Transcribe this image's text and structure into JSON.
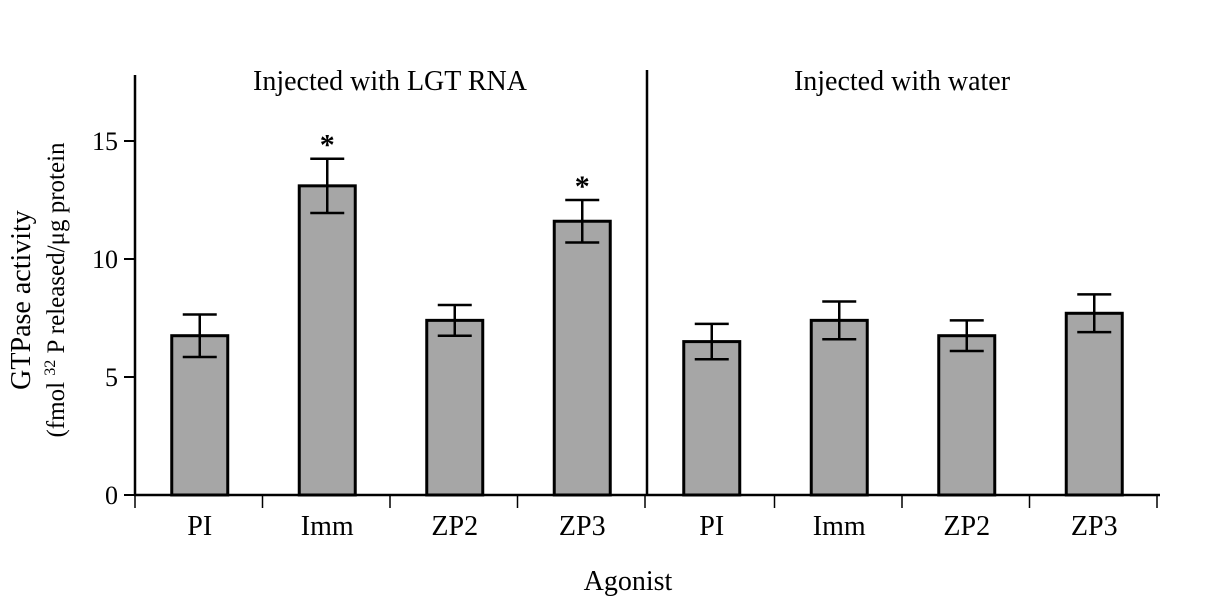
{
  "chart_data": {
    "type": "bar",
    "ylabel": "GTPase activity",
    "ylabel2_pre": "(fmol ",
    "ylabel2_sup": "32",
    "ylabel2_post": " P released/μg protein",
    "xlabel": "Agonist",
    "ylim": [
      0,
      17.5
    ],
    "yticks": [
      0,
      5,
      10,
      15
    ],
    "bar_color": "#a6a6a6",
    "groups": [
      {
        "label": "Injected with LGT RNA",
        "categories": [
          "PI",
          "Imm",
          "ZP2",
          "ZP3"
        ],
        "values": [
          6.75,
          13.1,
          7.4,
          11.6
        ],
        "errors": [
          0.9,
          1.15,
          0.65,
          0.9
        ],
        "significant": [
          "",
          "*",
          "",
          "*"
        ]
      },
      {
        "label": "Injected with water",
        "categories": [
          "PI",
          "Imm",
          "ZP2",
          "ZP3"
        ],
        "values": [
          6.5,
          7.4,
          6.75,
          7.7
        ],
        "errors": [
          0.75,
          0.8,
          0.65,
          0.8
        ],
        "significant": [
          "",
          "",
          "",
          ""
        ]
      }
    ]
  }
}
